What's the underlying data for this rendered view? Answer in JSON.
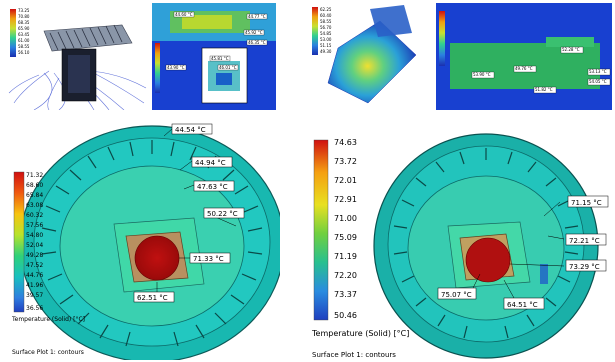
{
  "bottom_left": {
    "callouts": [
      "44.54 °C",
      "44.94 °C",
      "47.63 °C",
      "50.22 °C",
      "71.33 °C",
      "62.51 °C"
    ],
    "legend_values": [
      "71.32",
      "68.60",
      "65.84",
      "63.08",
      "60.32",
      "57.56",
      "54.80",
      "52.04",
      "49.28",
      "47.52",
      "44.76",
      "41.96",
      "39.57",
      "36.56"
    ],
    "legend_title": "Temperature (Solid) [°C]",
    "footer": "Surface Plot 1: contours"
  },
  "bottom_right": {
    "callouts": [
      "71.15 °C",
      "72.21 °C",
      "73.29 °C",
      "75.07 °C",
      "64.51 °C"
    ],
    "legend_values": [
      "74.63",
      "73.72",
      "72.01",
      "72.91",
      "71.00",
      "75.09",
      "71.19",
      "72.20",
      "73.37",
      "50.46"
    ],
    "legend_title": "Temperature (Solid) [°C]",
    "footer": "Surface Plot 1: contours"
  },
  "thumb_left": {
    "legend_values": [
      "73.25",
      "70.80",
      "68.35",
      "65.90",
      "63.45",
      "61.00",
      "58.55",
      "56.10"
    ],
    "callouts": [
      "44.60 °C",
      "44.77 °C",
      "45.92 °C",
      "46.35 °C",
      "45.81 °C",
      "46.01 °C",
      "43.90 °C"
    ]
  },
  "thumb_right": {
    "legend_values": [
      "62.25",
      "60.40",
      "58.55",
      "56.70",
      "54.85",
      "53.00",
      "51.15",
      "49.30"
    ],
    "callouts": [
      "52.28 °C",
      "53.90 °C",
      "49.76 °C",
      "53.13 °C",
      "54.05 °C",
      "51.82 °C"
    ]
  },
  "colors": {
    "legend_gradient": [
      "#d01010",
      "#f05a10",
      "#f7c410",
      "#b6e32c",
      "#2fd17a",
      "#18c0c0",
      "#2f7de0",
      "#1f3fbf"
    ]
  }
}
